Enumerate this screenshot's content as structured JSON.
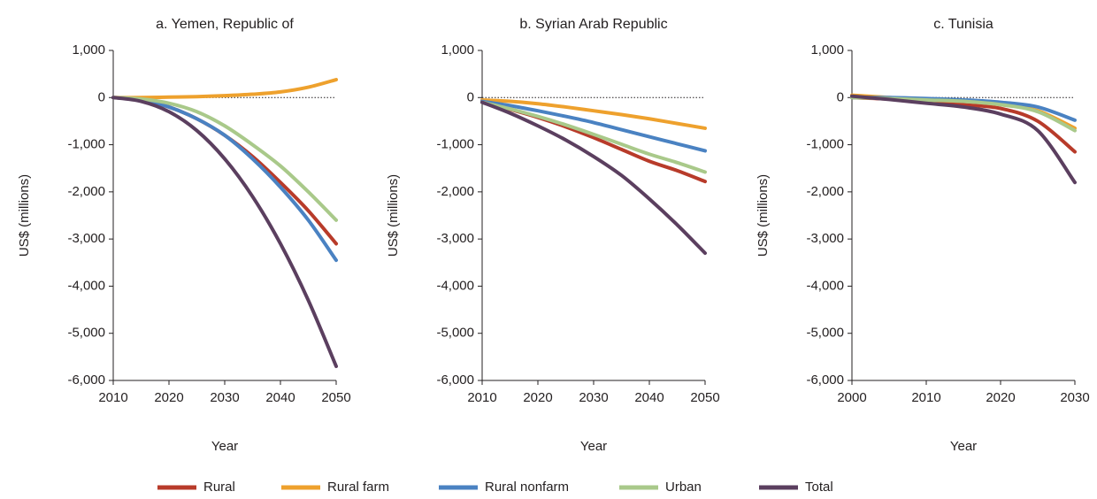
{
  "legend": [
    {
      "name": "Rural",
      "color": "#b83b2a"
    },
    {
      "name": "Rural farm",
      "color": "#eea12d"
    },
    {
      "name": "Rural nonfarm",
      "color": "#4a82c2"
    },
    {
      "name": "Urban",
      "color": "#a9c98a"
    },
    {
      "name": "Total",
      "color": "#5b3f5f"
    }
  ],
  "chart_data": [
    {
      "type": "line",
      "title": "a. Yemen, Republic of",
      "xlabel": "Year",
      "ylabel": "US$ (millions)",
      "x": [
        2010,
        2015,
        2020,
        2025,
        2030,
        2035,
        2040,
        2045,
        2050
      ],
      "xlim": [
        2010,
        2050
      ],
      "xticks": [
        2010,
        2020,
        2030,
        2040,
        2050
      ],
      "ylim": [
        -6000,
        1000
      ],
      "yticks": [
        {
          "value": -6000,
          "label": "-6,000"
        },
        {
          "value": -5000,
          "label": "-5,000"
        },
        {
          "value": -4000,
          "label": "-4,000"
        },
        {
          "value": -3000,
          "label": "-3,000"
        },
        {
          "value": -2000,
          "label": "-2,000"
        },
        {
          "value": -1000,
          "label": "-1,000"
        },
        0,
        {
          "value": 1000,
          "label": "1,000"
        }
      ],
      "series": [
        {
          "values": [
            0,
            -50,
            -200,
            -450,
            -800,
            -1250,
            -1800,
            -2400,
            -3100
          ]
        },
        {
          "values": [
            0,
            0,
            10,
            20,
            40,
            70,
            120,
            220,
            380
          ]
        },
        {
          "values": [
            0,
            -50,
            -200,
            -450,
            -800,
            -1300,
            -1900,
            -2600,
            -3450
          ]
        },
        {
          "values": [
            0,
            -30,
            -120,
            -300,
            -600,
            -1000,
            -1450,
            -2000,
            -2600
          ]
        },
        {
          "values": [
            0,
            -80,
            -300,
            -700,
            -1300,
            -2100,
            -3100,
            -4300,
            -5700
          ]
        }
      ]
    },
    {
      "type": "line",
      "title": "b. Syrian Arab Republic",
      "xlabel": "Year",
      "ylabel": "US$ (millions)",
      "x": [
        2010,
        2015,
        2020,
        2025,
        2030,
        2035,
        2040,
        2045,
        2050
      ],
      "xlim": [
        2010,
        2050
      ],
      "xticks": [
        2010,
        2020,
        2030,
        2040,
        2050
      ],
      "ylim": [
        -6000,
        1000
      ],
      "yticks": [
        {
          "value": -6000,
          "label": "-6,000"
        },
        {
          "value": -5000,
          "label": "-5,000"
        },
        {
          "value": -4000,
          "label": "-4,000"
        },
        {
          "value": -3000,
          "label": "-3,000"
        },
        {
          "value": -2000,
          "label": "-2,000"
        },
        {
          "value": -1000,
          "label": "-1,000"
        },
        0,
        {
          "value": 1000,
          "label": "1,000"
        }
      ],
      "series": [
        {
          "values": [
            -100,
            -250,
            -420,
            -620,
            -850,
            -1100,
            -1350,
            -1550,
            -1780
          ]
        },
        {
          "values": [
            -50,
            -80,
            -130,
            -200,
            -280,
            -360,
            -450,
            -550,
            -650
          ]
        },
        {
          "values": [
            -80,
            -170,
            -280,
            -400,
            -530,
            -680,
            -830,
            -980,
            -1130
          ]
        },
        {
          "values": [
            -100,
            -240,
            -400,
            -580,
            -780,
            -990,
            -1200,
            -1380,
            -1580
          ]
        },
        {
          "values": [
            -100,
            -330,
            -600,
            -900,
            -1250,
            -1650,
            -2150,
            -2700,
            -3300
          ]
        }
      ]
    },
    {
      "type": "line",
      "title": "c. Tunisia",
      "xlabel": "Year",
      "ylabel": "US$ (millions)",
      "x": [
        2000,
        2005,
        2010,
        2015,
        2020,
        2025,
        2030
      ],
      "xlim": [
        2000,
        2030
      ],
      "xticks": [
        2000,
        2010,
        2020,
        2030
      ],
      "ylim": [
        -6000,
        1000
      ],
      "yticks": [
        {
          "value": -6000,
          "label": "-6,000"
        },
        {
          "value": -5000,
          "label": "-5,000"
        },
        {
          "value": -4000,
          "label": "-4,000"
        },
        {
          "value": -3000,
          "label": "-3,000"
        },
        {
          "value": -2000,
          "label": "-2,000"
        },
        {
          "value": -1000,
          "label": "-1,000"
        },
        0,
        {
          "value": 1000,
          "label": "1,000"
        }
      ],
      "series": [
        {
          "values": [
            0,
            -30,
            -80,
            -150,
            -230,
            -500,
            -1150
          ]
        },
        {
          "values": [
            50,
            0,
            -50,
            -80,
            -150,
            -280,
            -650
          ]
        },
        {
          "values": [
            0,
            0,
            -20,
            -50,
            -100,
            -200,
            -480
          ]
        },
        {
          "values": [
            0,
            -20,
            -50,
            -80,
            -150,
            -300,
            -700
          ]
        },
        {
          "values": [
            30,
            -40,
            -120,
            -200,
            -350,
            -700,
            -1800
          ]
        }
      ]
    }
  ]
}
